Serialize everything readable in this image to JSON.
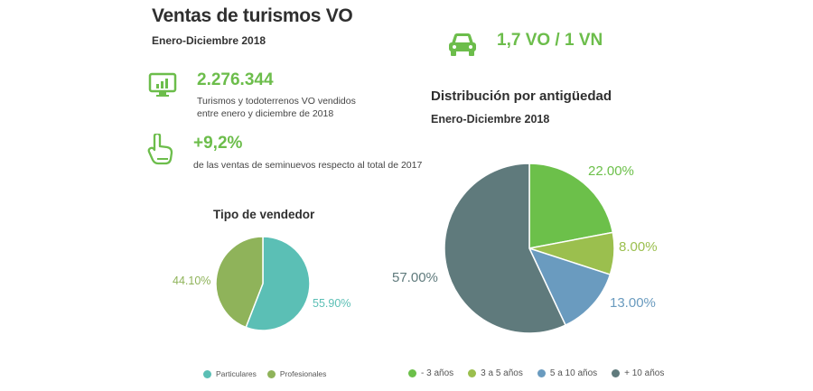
{
  "header": {
    "title": "Ventas de turismos VO",
    "subtitle": "Enero-Diciembre 2018",
    "ratio": "1,7 VO / 1 VN"
  },
  "stats": {
    "sales_value": "2.276.344",
    "sales_desc_line1": "Turismos y todoterrenos VO vendidos",
    "sales_desc_line2": "entre enero y diciembre de 2018",
    "growth_value": "+9,2%",
    "growth_desc": "de las ventas de seminuevos respecto al total de 2017"
  },
  "icons": {
    "car": "car-icon",
    "monitor": "monitor-chart-icon",
    "hand": "hand-pointer-icon"
  },
  "chart_data": [
    {
      "type": "pie",
      "title": "Tipo de vendedor",
      "categories": [
        "Particulares",
        "Profesionales"
      ],
      "values": [
        55.9,
        44.1
      ],
      "labels": [
        "55.90%",
        "44.10%"
      ],
      "colors": [
        "#5bbfb5",
        "#8fb35a"
      ],
      "legend_position": "bottom"
    },
    {
      "type": "pie",
      "title": "Distribución por antigüedad",
      "subtitle": "Enero-Diciembre 2018",
      "categories": [
        "- 3 años",
        "3 a 5 años",
        "5 a 10 años",
        "+ 10 años"
      ],
      "values": [
        22,
        8,
        13,
        57
      ],
      "labels": [
        "22.00%",
        "8.00%",
        "13.00%",
        "57.00%"
      ],
      "colors": [
        "#6cc04a",
        "#9bbf4e",
        "#6a9bbf",
        "#5f7a7c"
      ],
      "legend_position": "bottom"
    }
  ]
}
